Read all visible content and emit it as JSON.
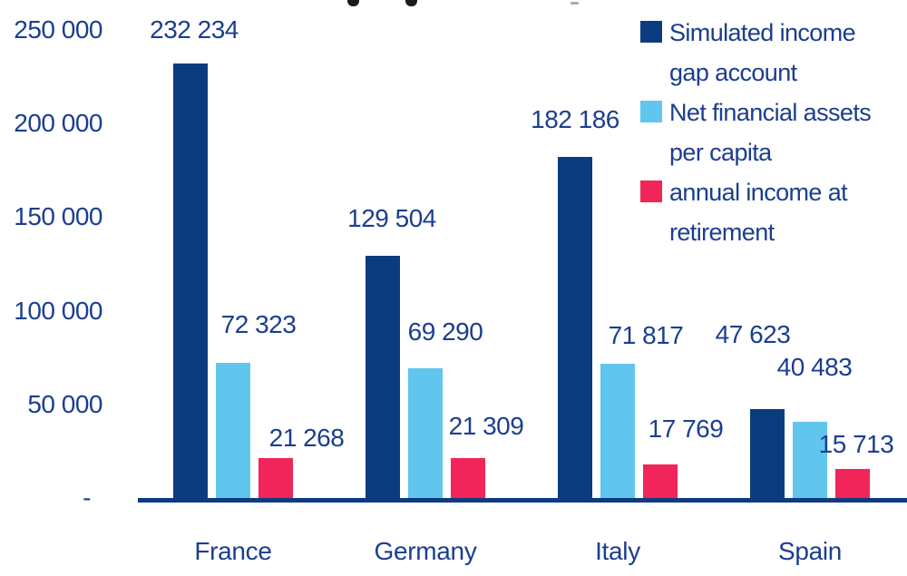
{
  "chart_data": {
    "type": "bar",
    "categories": [
      "France",
      "Germany",
      "Italy",
      "Spain"
    ],
    "series": [
      {
        "name": "Simulated income gap account",
        "color": "#0C3C80",
        "values": [
          232234,
          129504,
          182186,
          47623
        ],
        "labels": [
          "232 234",
          "129 504",
          "182 186",
          "47 623"
        ]
      },
      {
        "name": "Net financial assets per capita",
        "color": "#60C6EE",
        "values": [
          72323,
          69290,
          71817,
          40483
        ],
        "labels": [
          "72 323",
          "69 290",
          "71 817",
          "40 483"
        ]
      },
      {
        "name": "annual income at retirement",
        "color": "#F2255B",
        "values": [
          21268,
          21309,
          17769,
          15713
        ],
        "labels": [
          "21 268",
          "21 309",
          "17 769",
          "15 713"
        ]
      }
    ],
    "yticks": [
      {
        "label": "250 000",
        "value": 250000
      },
      {
        "label": "200 000",
        "value": 200000
      },
      {
        "label": "150 000",
        "value": 150000
      },
      {
        "label": "100 000",
        "value": 100000
      },
      {
        "label": "50 000",
        "value": 50000
      },
      {
        "label": "-",
        "value": 0
      }
    ],
    "ylim": [
      0,
      250000
    ],
    "grid": false,
    "legend_position": "top-right",
    "legend": {
      "entries": [
        {
          "swatch_color": "#0C3C80",
          "lines": [
            "Simulated income",
            "gap account"
          ]
        },
        {
          "swatch_color": "#60C6EE",
          "lines": [
            "Net financial assets",
            "per capita"
          ]
        },
        {
          "swatch_color": "#F2255B",
          "lines": [
            "annual income at",
            "retirement"
          ]
        }
      ]
    },
    "colors": {
      "text": "#1B3E8F",
      "axis_line": "#0D3C7E",
      "background": "#FFFFFF"
    }
  }
}
